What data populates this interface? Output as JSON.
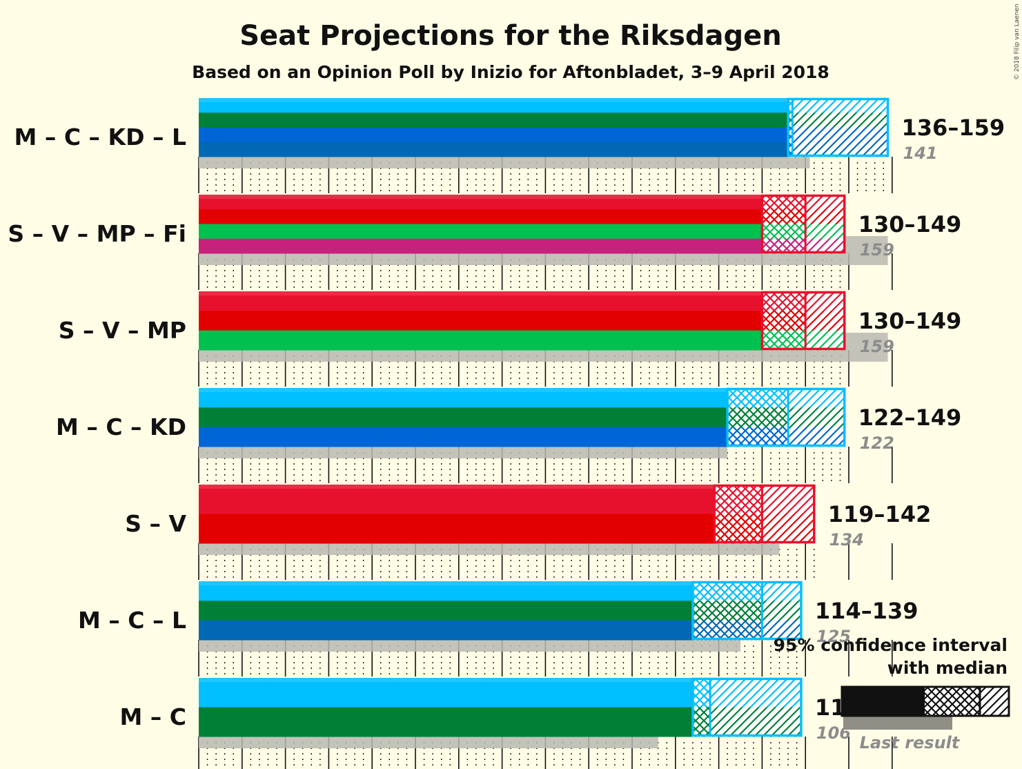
{
  "title": "Seat Projections for the Riksdagen",
  "subtitle": "Based on an Opinion Poll by Inizio for Aftonbladet, 3–9 April 2018",
  "credit": "© 2018 Filip van Laenen",
  "legend": {
    "line1": "95% confidence interval",
    "line2": "with median",
    "last_result": "Last result"
  },
  "colors": {
    "background": "#fffde6",
    "M": "#00bfff",
    "C": "#008037",
    "KD": "#0066d6",
    "L": "#0068b4",
    "S": "#e8112d",
    "V": "#e30000",
    "MP": "#00c050",
    "Fi": "#c8217c",
    "last_result": "#bdbdbd"
  },
  "chart_data": {
    "type": "bar",
    "orientation": "horizontal",
    "title": "Seat Projections for the Riksdagen",
    "subtitle": "Based on an Opinion Poll by Inizio for Aftonbladet, 3–9 April 2018",
    "xlim": [
      0,
      160
    ],
    "coalitions": [
      {
        "label": "M – C – KD – L",
        "parties": [
          "M",
          "C",
          "KD",
          "L"
        ],
        "low": 136,
        "median": 137,
        "high": 159,
        "range_text": "136–159",
        "last": 141,
        "last_text": "141"
      },
      {
        "label": "S – V – MP – Fi",
        "parties": [
          "S",
          "V",
          "MP",
          "Fi"
        ],
        "low": 130,
        "median": 140,
        "high": 149,
        "range_text": "130–149",
        "last": 159,
        "last_text": "159"
      },
      {
        "label": "S – V – MP",
        "parties": [
          "S",
          "V",
          "MP"
        ],
        "low": 130,
        "median": 140,
        "high": 149,
        "range_text": "130–149",
        "last": 159,
        "last_text": "159"
      },
      {
        "label": "M – C – KD",
        "parties": [
          "M",
          "C",
          "KD"
        ],
        "low": 122,
        "median": 136,
        "high": 149,
        "range_text": "122–149",
        "last": 122,
        "last_text": "122"
      },
      {
        "label": "S – V",
        "parties": [
          "S",
          "V"
        ],
        "low": 119,
        "median": 130,
        "high": 142,
        "range_text": "119–142",
        "last": 134,
        "last_text": "134"
      },
      {
        "label": "M – C – L",
        "parties": [
          "M",
          "C",
          "L"
        ],
        "low": 114,
        "median": 130,
        "high": 139,
        "range_text": "114–139",
        "last": 125,
        "last_text": "125"
      },
      {
        "label": "M – C",
        "parties": [
          "M",
          "C"
        ],
        "low": 114,
        "median": 118,
        "high": 139,
        "range_text": "114–139",
        "last": 106,
        "last_text": "106"
      }
    ]
  }
}
